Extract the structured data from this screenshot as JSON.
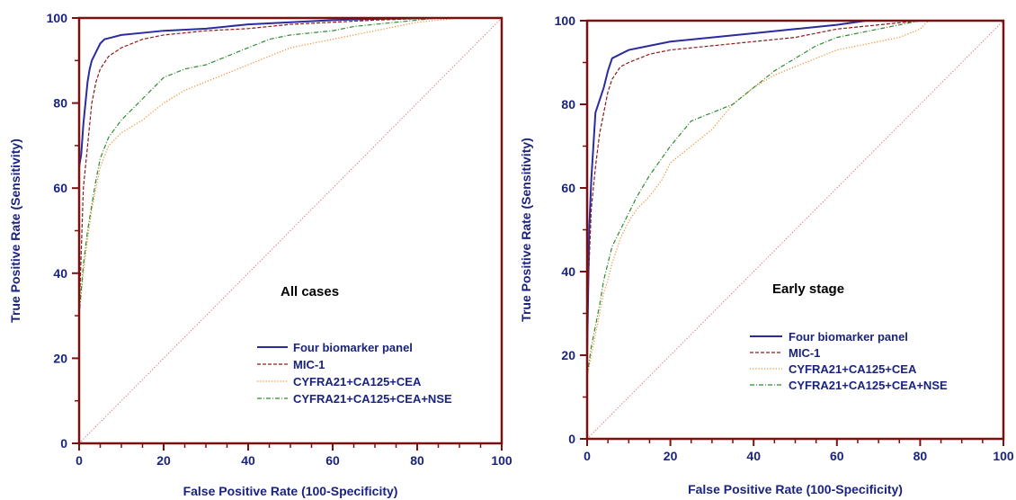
{
  "colors": {
    "frame": "#7b1010",
    "text": "#1a237e",
    "diagonal": "#d06060",
    "four": "#2b2ba0",
    "mic": "#8b1a1a",
    "cyfra3": "#f08c28",
    "cyfra4": "#2e8b2e"
  },
  "chart_data": [
    {
      "type": "line",
      "title": "",
      "annotation": "All cases",
      "xlabel": "False Positive Rate (100-Specificity)",
      "ylabel": "True Positive Rate (Sensitivity)",
      "xlim": [
        0,
        100
      ],
      "ylim": [
        0,
        100
      ],
      "xticks": [
        "0",
        "20",
        "40",
        "60",
        "80",
        "100"
      ],
      "yticks": [
        "0",
        "20",
        "40",
        "60",
        "80",
        "100"
      ],
      "legend_position": "bottom-right",
      "series": [
        {
          "name": "Four biomarker panel",
          "color_key": "four",
          "style": "solid",
          "x": [
            0,
            0,
            0.5,
            1,
            1.5,
            2,
            2.5,
            3,
            4,
            5,
            6,
            8,
            10,
            15,
            20,
            30,
            40,
            50,
            60,
            70,
            85,
            100
          ],
          "y": [
            0,
            65,
            68,
            75,
            80,
            85,
            88,
            90,
            92,
            94,
            95,
            95.5,
            96,
            96.5,
            97,
            97.5,
            98.5,
            99,
            99.5,
            99.8,
            100,
            100
          ]
        },
        {
          "name": "MIC-1",
          "color_key": "mic",
          "style": "dashed",
          "x": [
            0,
            0,
            0.5,
            1,
            2,
            3,
            4,
            5,
            7,
            10,
            15,
            20,
            30,
            40,
            50,
            60,
            70,
            85,
            100
          ],
          "y": [
            0,
            30,
            45,
            60,
            70,
            80,
            85,
            88,
            91,
            93,
            95,
            96,
            97,
            97.5,
            98.5,
            99,
            99.5,
            100,
            100
          ]
        },
        {
          "name": "CYFRA21+CA125+CEA",
          "color_key": "cyfra3",
          "style": "dotted",
          "x": [
            0,
            0,
            1,
            2,
            3,
            4,
            5,
            7,
            10,
            15,
            20,
            25,
            30,
            35,
            40,
            45,
            50,
            55,
            60,
            65,
            70,
            75,
            80,
            85,
            90,
            100
          ],
          "y": [
            0,
            30,
            40,
            48,
            55,
            60,
            65,
            70,
            73,
            76,
            80,
            83,
            85,
            87,
            89,
            91,
            93,
            94,
            95,
            96,
            97,
            98,
            99,
            99.5,
            100,
            100
          ]
        },
        {
          "name": "CYFRA21+CA125+CEA+NSE",
          "color_key": "cyfra4",
          "style": "dashdot",
          "x": [
            0,
            0,
            1,
            2,
            3,
            4,
            5,
            7,
            10,
            15,
            20,
            25,
            30,
            35,
            40,
            45,
            50,
            55,
            60,
            65,
            70,
            75,
            80,
            85,
            90,
            100
          ],
          "y": [
            0,
            30,
            42,
            50,
            56,
            62,
            67,
            72,
            76,
            81,
            86,
            88,
            89,
            91,
            93,
            95,
            96,
            96.5,
            97,
            98,
            98.5,
            99,
            99.5,
            100,
            100,
            100
          ]
        },
        {
          "name": "",
          "color_key": "diagonal",
          "style": "dotted",
          "x": [
            0,
            100
          ],
          "y": [
            0,
            100
          ]
        }
      ]
    },
    {
      "type": "line",
      "title": "",
      "annotation": "Early stage",
      "xlabel": "False Positive Rate (100-Specificity)",
      "ylabel": "True Positive Rate (Sensitivity)",
      "xlim": [
        0,
        100
      ],
      "ylim": [
        0,
        100
      ],
      "xticks": [
        "0",
        "20",
        "40",
        "60",
        "80",
        "100"
      ],
      "yticks": [
        "0",
        "20",
        "40",
        "60",
        "80",
        "100"
      ],
      "legend_position": "bottom-right",
      "series": [
        {
          "name": "Four biomarker panel",
          "color_key": "four",
          "style": "solid",
          "x": [
            0,
            0,
            0.5,
            1,
            1.5,
            2,
            3,
            4,
            5,
            6,
            8,
            10,
            15,
            20,
            30,
            40,
            50,
            60,
            67,
            100
          ],
          "y": [
            0,
            20,
            50,
            62,
            70,
            78,
            81,
            84,
            88,
            91,
            92,
            93,
            94,
            95,
            96,
            97,
            98,
            99,
            100,
            100
          ]
        },
        {
          "name": "MIC-1",
          "color_key": "mic",
          "style": "dashed",
          "x": [
            0,
            0,
            1,
            2,
            3,
            4,
            5,
            6,
            8,
            10,
            15,
            20,
            30,
            40,
            50,
            60,
            70,
            80,
            100
          ],
          "y": [
            0,
            30,
            55,
            65,
            73,
            78,
            83,
            86,
            89,
            90,
            92,
            93,
            94,
            95,
            96,
            98,
            99,
            100,
            100
          ]
        },
        {
          "name": "CYFRA21+CA125+CEA",
          "color_key": "cyfra3",
          "style": "dotted",
          "x": [
            0,
            0,
            1,
            2,
            3,
            4,
            5,
            6,
            7,
            8,
            10,
            12,
            15,
            18,
            20,
            25,
            30,
            35,
            40,
            45,
            50,
            55,
            60,
            65,
            70,
            75,
            80,
            82,
            100
          ],
          "y": [
            0,
            15,
            20,
            25,
            30,
            35,
            38,
            42,
            45,
            48,
            52,
            55,
            58,
            62,
            66,
            70,
            74,
            80,
            84,
            87,
            89,
            91,
            93,
            94,
            95,
            96,
            98,
            100,
            100
          ]
        },
        {
          "name": "CYFRA21+CA125+CEA+NSE",
          "color_key": "cyfra4",
          "style": "dashdot",
          "x": [
            0,
            0,
            1,
            2,
            3,
            4,
            5,
            6,
            8,
            10,
            12,
            15,
            20,
            25,
            30,
            35,
            40,
            45,
            50,
            55,
            60,
            65,
            70,
            80,
            100
          ],
          "y": [
            0,
            15,
            22,
            27,
            32,
            38,
            42,
            46,
            50,
            54,
            58,
            63,
            70,
            76,
            78,
            80,
            84,
            88,
            91,
            94,
            96,
            97,
            98,
            100,
            100
          ]
        },
        {
          "name": "",
          "color_key": "diagonal",
          "style": "dotted",
          "x": [
            0,
            100
          ],
          "y": [
            0,
            100
          ]
        }
      ]
    }
  ]
}
